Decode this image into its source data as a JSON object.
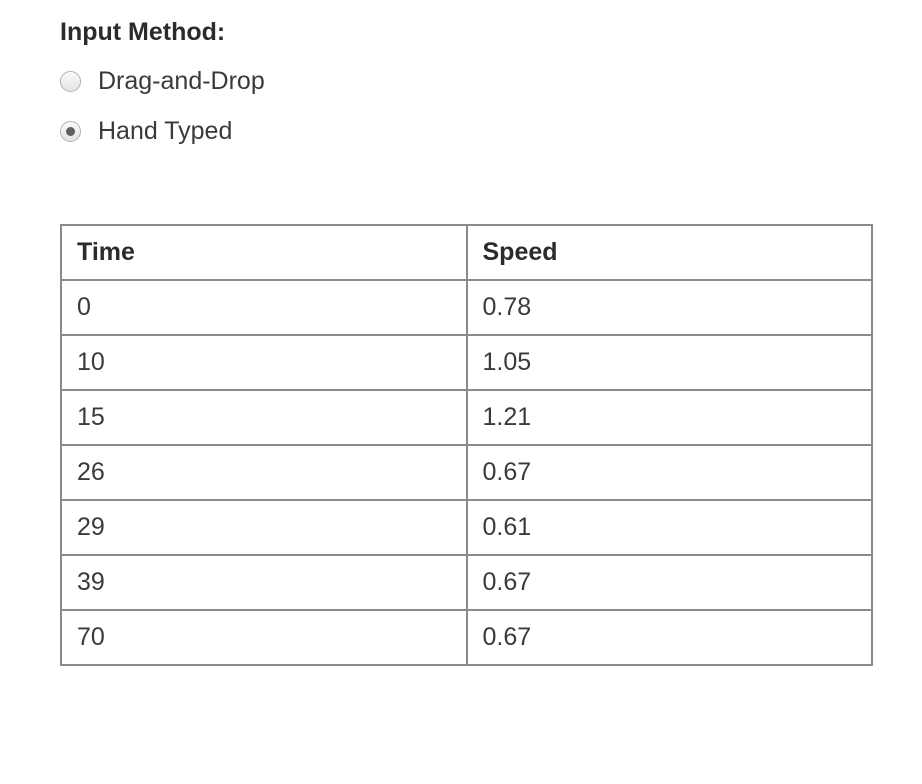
{
  "form": {
    "label": "Input Method:",
    "radio_group_name": "input-method",
    "options": [
      {
        "id": "drag-and-drop",
        "label": "Drag-and-Drop",
        "selected": false
      },
      {
        "id": "hand-typed",
        "label": "Hand Typed",
        "selected": true
      }
    ]
  },
  "table": {
    "headers": [
      "Time",
      "Speed"
    ],
    "rows": [
      [
        "0",
        "0.78"
      ],
      [
        "10",
        "1.05"
      ],
      [
        "15",
        "1.21"
      ],
      [
        "26",
        "0.67"
      ],
      [
        "29",
        "0.61"
      ],
      [
        "39",
        "0.67"
      ],
      [
        "70",
        "0.67"
      ]
    ]
  },
  "colors": {
    "background": "#ffffff",
    "heading_text": "#2b2b2b",
    "body_text": "#3a3a3a",
    "table_border": "#8a8a8a",
    "radio_border": "#b2b2b2",
    "radio_dot": "#5f5f5f"
  }
}
